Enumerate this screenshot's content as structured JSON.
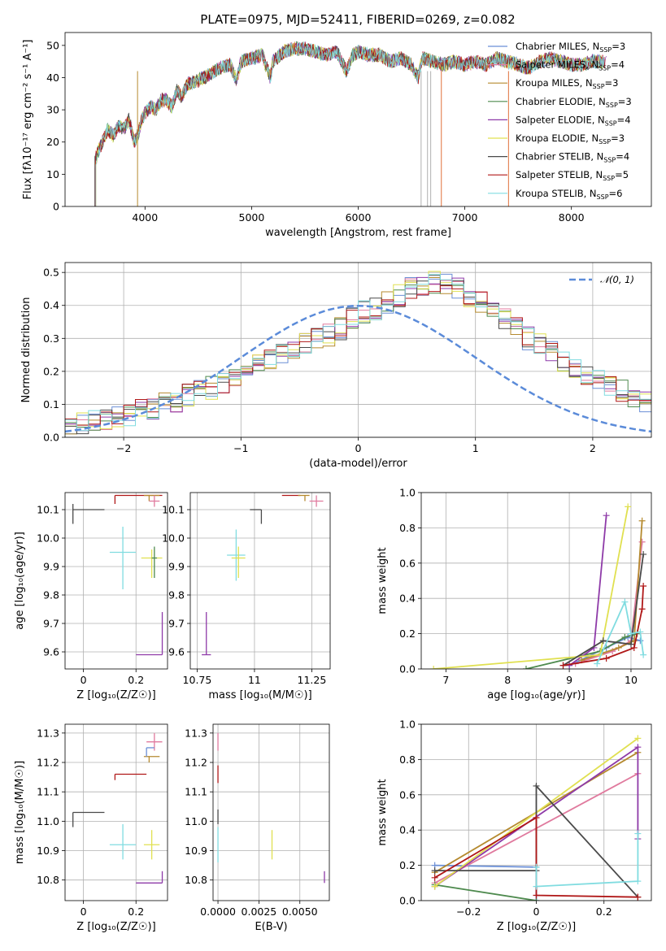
{
  "title": "PLATE=0975, MJD=52411, FIBERID=0269, z=0.082",
  "models": [
    {
      "name": "Chabrier MILES",
      "nssp": "3",
      "color": "#6b8fd6"
    },
    {
      "name": "Salpeter MILES",
      "nssp": "4",
      "color": "#e07a9e"
    },
    {
      "name": "Kroupa MILES",
      "nssp": "3",
      "color": "#b58a2f"
    },
    {
      "name": "Chabrier ELODIE",
      "nssp": "3",
      "color": "#4e8a4e"
    },
    {
      "name": "Salpeter ELODIE",
      "nssp": "4",
      "color": "#8e3aa8"
    },
    {
      "name": "Kroupa ELODIE",
      "nssp": "3",
      "color": "#e0e050"
    },
    {
      "name": "Chabrier STELIB",
      "nssp": "4",
      "color": "#4a4a4a"
    },
    {
      "name": "Salpeter STELIB",
      "nssp": "5",
      "color": "#b01818"
    },
    {
      "name": "Kroupa STELIB",
      "nssp": "6",
      "color": "#80dce0"
    }
  ],
  "chart_data": [
    {
      "id": "spectrum",
      "type": "line",
      "xlabel": "wavelength [Angstrom, rest frame]",
      "ylabel": "Flux [fλ10⁻¹⁷ erg cm⁻² s⁻¹ A⁻¹]",
      "xlim": [
        3250,
        8750
      ],
      "ylim": [
        0,
        54
      ],
      "xticks": [
        4000,
        5000,
        6000,
        7000,
        8000
      ],
      "yticks": [
        0,
        10,
        20,
        30,
        40,
        50
      ],
      "grid": false,
      "legend": "upper right",
      "x": [
        3530,
        3560,
        3600,
        3650,
        3700,
        3750,
        3800,
        3850,
        3900,
        3930,
        3970,
        4000,
        4050,
        4100,
        4150,
        4200,
        4250,
        4300,
        4340,
        4400,
        4500,
        4600,
        4700,
        4800,
        4861,
        4900,
        5000,
        5100,
        5175,
        5200,
        5300,
        5400,
        5500,
        5600,
        5700,
        5800,
        5890,
        5950,
        6000,
        6100,
        6200,
        6300,
        6400,
        6500,
        6563,
        6600,
        6700,
        6800,
        6900,
        7000,
        7100,
        7200,
        7300,
        7400,
        7500,
        7600,
        7700,
        7800,
        7900,
        8000,
        8100,
        8200,
        8300
      ],
      "values": [
        14,
        17,
        20,
        24,
        22,
        25,
        24,
        27,
        20,
        22,
        27,
        29,
        31,
        30,
        33,
        33,
        31,
        36,
        34,
        38,
        39,
        41,
        43,
        44,
        39,
        45,
        46,
        47,
        40,
        45,
        48,
        49,
        49,
        48,
        47,
        48,
        42,
        47,
        48,
        47,
        47,
        45,
        46,
        44,
        40,
        46,
        45,
        44,
        45,
        44,
        45,
        44,
        46,
        45,
        44,
        43,
        45,
        46,
        45,
        44,
        44,
        45,
        45
      ]
    },
    {
      "id": "residuals",
      "type": "histogram",
      "xlabel": "(data-model)/error",
      "ylabel": "Normed distribution",
      "xlim": [
        -2.5,
        2.5
      ],
      "ylim": [
        0,
        0.53
      ],
      "xticks": [
        -2,
        -1,
        0,
        1,
        2
      ],
      "yticks": [
        0.0,
        0.1,
        0.2,
        0.3,
        0.4,
        0.5
      ],
      "grid": true,
      "legend": "upper right",
      "reference_label": "𝒩(0, 1)",
      "bin_width": 0.1,
      "bin_start": -2.5,
      "base_values": [
        0.03,
        0.04,
        0.05,
        0.05,
        0.06,
        0.07,
        0.08,
        0.09,
        0.1,
        0.11,
        0.13,
        0.14,
        0.15,
        0.16,
        0.18,
        0.2,
        0.22,
        0.23,
        0.25,
        0.26,
        0.28,
        0.3,
        0.31,
        0.33,
        0.36,
        0.38,
        0.39,
        0.41,
        0.43,
        0.45,
        0.46,
        0.47,
        0.46,
        0.45,
        0.43,
        0.41,
        0.39,
        0.36,
        0.33,
        0.3,
        0.28,
        0.26,
        0.23,
        0.21,
        0.19,
        0.17,
        0.15,
        0.14,
        0.12,
        0.11,
        0.09,
        0.08,
        0.07,
        0.06,
        0.05,
        0.05,
        0.04,
        0.03,
        0.03,
        0.03,
        0.02,
        0.02,
        0.02,
        0.02,
        0.02,
        0.02,
        0.02,
        0.02,
        0.02,
        0.02,
        0.02,
        0.02,
        0.02,
        0.02,
        0.02,
        0.02,
        0.02,
        0.02,
        0.02,
        0.02,
        0.02,
        0.02,
        0.02,
        0.02,
        0.02,
        0.02,
        0.02,
        0.02,
        0.02,
        0.02,
        0.02,
        0.02,
        0.02,
        0.02,
        0.02,
        0.02,
        0.02,
        0.02,
        0.02,
        0.02
      ]
    },
    {
      "id": "age-vs-Z",
      "type": "scatter",
      "xlabel": "Z [log₁₀(Z/Z☉)]",
      "ylabel": "age  [log₁₀(age/yr)]",
      "xlim": [
        -0.07,
        0.32
      ],
      "ylim": [
        9.54,
        10.16
      ],
      "xticks": [
        0.0,
        0.2
      ],
      "yticks": [
        9.6,
        9.7,
        9.8,
        9.9,
        10.0,
        10.1
      ],
      "grid": true,
      "points": [
        {
          "x": -0.04,
          "y": 10.1,
          "xerr": [
            0,
            0.12
          ],
          "yerr": [
            0.05,
            0.02
          ]
        },
        {
          "x": 0.12,
          "y": 10.15,
          "xerr": [
            0,
            0.18
          ],
          "yerr": [
            0.03,
            0.0
          ]
        },
        {
          "x": 0.25,
          "y": 10.15,
          "xerr": [
            0.02,
            0.04
          ],
          "yerr": [
            0.02,
            0.0
          ]
        },
        {
          "x": 0.27,
          "y": 10.13,
          "xerr": [
            0.02,
            0.02
          ],
          "yerr": [
            0.02,
            0.02
          ]
        },
        {
          "x": 0.15,
          "y": 9.95,
          "xerr": [
            0.05,
            0.05
          ],
          "yerr": [
            0.13,
            0.09
          ]
        },
        {
          "x": 0.26,
          "y": 9.93,
          "xerr": [
            0.04,
            0.04
          ],
          "yerr": [
            0.07,
            0.03
          ]
        },
        {
          "x": 0.27,
          "y": 9.93,
          "xerr": [
            0.01,
            0.01
          ],
          "yerr": [
            0.07,
            0.04
          ]
        },
        {
          "x": 0.3,
          "y": 9.59,
          "xerr": [
            0.1,
            0.0
          ],
          "yerr": [
            0.0,
            0.15
          ]
        }
      ]
    },
    {
      "id": "age-vs-mass",
      "type": "scatter",
      "xlabel": "mass [log₁₀(M/M☉)]",
      "ylabel": "",
      "xlim": [
        10.72,
        11.33
      ],
      "ylim": [
        9.54,
        10.16
      ],
      "xticks": [
        10.75,
        11.0,
        11.25
      ],
      "yticks": [
        9.6,
        9.7,
        9.8,
        9.9,
        10.0,
        10.1
      ],
      "grid": true,
      "points": [
        {
          "x": 11.03,
          "y": 10.1,
          "xerr": [
            0.05,
            0.0
          ],
          "yerr": [
            0.05,
            0.0
          ]
        },
        {
          "x": 11.16,
          "y": 10.15,
          "xerr": [
            0.04,
            0.04
          ],
          "yerr": [
            0.0,
            0.0
          ]
        },
        {
          "x": 11.22,
          "y": 10.15,
          "xerr": [
            0.03,
            0.02
          ],
          "yerr": [
            0.02,
            0.0
          ]
        },
        {
          "x": 11.27,
          "y": 10.13,
          "xerr": [
            0.03,
            0.03
          ],
          "yerr": [
            0.02,
            0.02
          ]
        },
        {
          "x": 10.92,
          "y": 9.94,
          "xerr": [
            0.04,
            0.04
          ],
          "yerr": [
            0.09,
            0.09
          ]
        },
        {
          "x": 10.93,
          "y": 9.93,
          "xerr": [
            0.03,
            0.03
          ],
          "yerr": [
            0.07,
            0.04
          ]
        },
        {
          "x": 10.79,
          "y": 9.59,
          "xerr": [
            0.02,
            0.02
          ],
          "yerr": [
            0.0,
            0.15
          ]
        }
      ]
    },
    {
      "id": "weight-vs-age",
      "type": "line",
      "xlabel": "age  [log₁₀(age/yr)]",
      "ylabel": "mass weight",
      "xlim": [
        6.6,
        10.33
      ],
      "ylim": [
        0,
        1.0
      ],
      "xticks": [
        7,
        8,
        9,
        10
      ],
      "yticks": [
        0.0,
        0.2,
        0.4,
        0.6,
        0.8,
        1.0
      ],
      "grid": true,
      "series": [
        {
          "x": [
            9.0,
            9.6,
            9.95,
            10.15
          ],
          "y": [
            0.02,
            0.12,
            0.18,
            0.16
          ]
        },
        {
          "x": [
            9.1,
            9.7,
            10.0,
            10.18
          ],
          "y": [
            0.03,
            0.1,
            0.16,
            0.72
          ]
        },
        {
          "x": [
            9.2,
            9.8,
            10.05,
            10.18
          ],
          "y": [
            0.05,
            0.12,
            0.16,
            0.84
          ]
        },
        {
          "x": [
            8.3,
            9.5,
            9.9,
            10.1
          ],
          "y": [
            0.0,
            0.1,
            0.18,
            0.2
          ]
        },
        {
          "x": [
            9.0,
            9.4,
            9.6
          ],
          "y": [
            0.02,
            0.12,
            0.87
          ]
        },
        {
          "x": [
            6.8,
            9.5,
            9.95
          ],
          "y": [
            0.0,
            0.08,
            0.92
          ]
        },
        {
          "x": [
            8.9,
            9.55,
            10.0,
            10.2
          ],
          "y": [
            0.02,
            0.16,
            0.14,
            0.65
          ]
        },
        {
          "x": [
            8.9,
            9.6,
            10.05,
            10.18,
            10.2
          ],
          "y": [
            0.02,
            0.06,
            0.12,
            0.34,
            0.47
          ]
        },
        {
          "x": [
            9.45,
            9.9,
            10.0,
            10.15,
            10.2
          ],
          "y": [
            0.03,
            0.38,
            0.2,
            0.21,
            0.08
          ]
        }
      ]
    },
    {
      "id": "mass-vs-Z",
      "type": "scatter",
      "xlabel": "Z [log₁₀(Z/Z☉)]",
      "ylabel": "mass [log₁₀(M/M☉)]",
      "xlim": [
        -0.07,
        0.32
      ],
      "ylim": [
        10.73,
        11.33
      ],
      "xticks": [
        0.0,
        0.2
      ],
      "yticks": [
        10.8,
        10.9,
        11.0,
        11.1,
        11.2,
        11.3
      ],
      "grid": true,
      "points": [
        {
          "x": -0.04,
          "y": 11.03,
          "xerr": [
            0,
            0.12
          ],
          "yerr": [
            0.05,
            0.0
          ]
        },
        {
          "x": 0.12,
          "y": 11.16,
          "xerr": [
            0,
            0.12
          ],
          "yerr": [
            0.02,
            0.0
          ]
        },
        {
          "x": 0.25,
          "y": 11.22,
          "xerr": [
            0.02,
            0.04
          ],
          "yerr": [
            0.02,
            0.0
          ]
        },
        {
          "x": 0.27,
          "y": 11.27,
          "xerr": [
            0.03,
            0.03
          ],
          "yerr": [
            0.03,
            0.03
          ]
        },
        {
          "x": 0.24,
          "y": 11.25,
          "xerr": [
            0.0,
            0.03
          ],
          "yerr": [
            0.03,
            0.0
          ]
        },
        {
          "x": 0.15,
          "y": 10.92,
          "xerr": [
            0.05,
            0.05
          ],
          "yerr": [
            0.05,
            0.07
          ]
        },
        {
          "x": 0.26,
          "y": 10.92,
          "xerr": [
            0.03,
            0.03
          ],
          "yerr": [
            0.05,
            0.05
          ]
        },
        {
          "x": 0.3,
          "y": 10.79,
          "xerr": [
            0.1,
            0.0
          ],
          "yerr": [
            0.0,
            0.04
          ]
        }
      ]
    },
    {
      "id": "mass-vs-ebv",
      "type": "scatter",
      "xlabel": "E(B-V)",
      "ylabel": "",
      "xlim": [
        -0.0003,
        0.0068
      ],
      "ylim": [
        10.73,
        11.33
      ],
      "xticks": [
        0.0,
        0.0025,
        0.005
      ],
      "xticklabels": [
        "0.0000",
        "0.0025",
        "0.0050"
      ],
      "yticks": [
        10.8,
        10.9,
        11.0,
        11.1,
        11.2,
        11.3
      ],
      "grid": true,
      "points": [
        {
          "x": 0.0,
          "y": 11.27,
          "xerr": [
            0,
            0
          ],
          "yerr": [
            0.03,
            0.03
          ]
        },
        {
          "x": 0.0,
          "y": 11.16,
          "xerr": [
            0,
            0
          ],
          "yerr": [
            0.03,
            0.03
          ]
        },
        {
          "x": 0.0,
          "y": 11.02,
          "xerr": [
            0,
            0
          ],
          "yerr": [
            0.03,
            0.02
          ]
        },
        {
          "x": 0.0,
          "y": 10.92,
          "xerr": [
            0,
            0
          ],
          "yerr": [
            0.06,
            0.06
          ]
        },
        {
          "x": 0.0033,
          "y": 10.92,
          "xerr": [
            0,
            0
          ],
          "yerr": [
            0.05,
            0.05
          ]
        },
        {
          "x": 0.0065,
          "y": 10.79,
          "xerr": [
            0,
            0
          ],
          "yerr": [
            0.0,
            0.04
          ]
        }
      ]
    },
    {
      "id": "weight-vs-Z",
      "type": "line",
      "xlabel": "Z [log₁₀(Z/Z☉)]",
      "ylabel": "mass weight",
      "xlim": [
        -0.34,
        0.34
      ],
      "ylim": [
        0,
        1.0
      ],
      "xticks": [
        -0.2,
        0.0,
        0.2
      ],
      "yticks": [
        0.0,
        0.2,
        0.4,
        0.6,
        0.8,
        1.0
      ],
      "grid": true,
      "series": [
        {
          "x": [
            -0.3,
            0.0,
            0.0
          ],
          "y": [
            0.2,
            0.19,
            0.0
          ]
        },
        {
          "x": [
            -0.3,
            0.3
          ],
          "y": [
            0.1,
            0.72
          ]
        },
        {
          "x": [
            -0.3,
            0.3
          ],
          "y": [
            0.16,
            0.84
          ]
        },
        {
          "x": [
            -0.3,
            0.0
          ],
          "y": [
            0.09,
            0.0
          ]
        },
        {
          "x": [
            -0.3,
            0.3,
            0.3
          ],
          "y": [
            0.08,
            0.87,
            0.35
          ]
        },
        {
          "x": [
            -0.3,
            0.3
          ],
          "y": [
            0.08,
            0.92
          ]
        },
        {
          "x": [
            -0.3,
            0.0,
            0.0,
            0.3
          ],
          "y": [
            0.17,
            0.17,
            0.65,
            0.02
          ]
        },
        {
          "x": [
            -0.3,
            0.0,
            0.0,
            0.3
          ],
          "y": [
            0.13,
            0.47,
            0.03,
            0.02
          ]
        },
        {
          "x": [
            0.0,
            0.0,
            0.3,
            0.3
          ],
          "y": [
            0.19,
            0.08,
            0.11,
            0.38
          ]
        }
      ]
    }
  ]
}
